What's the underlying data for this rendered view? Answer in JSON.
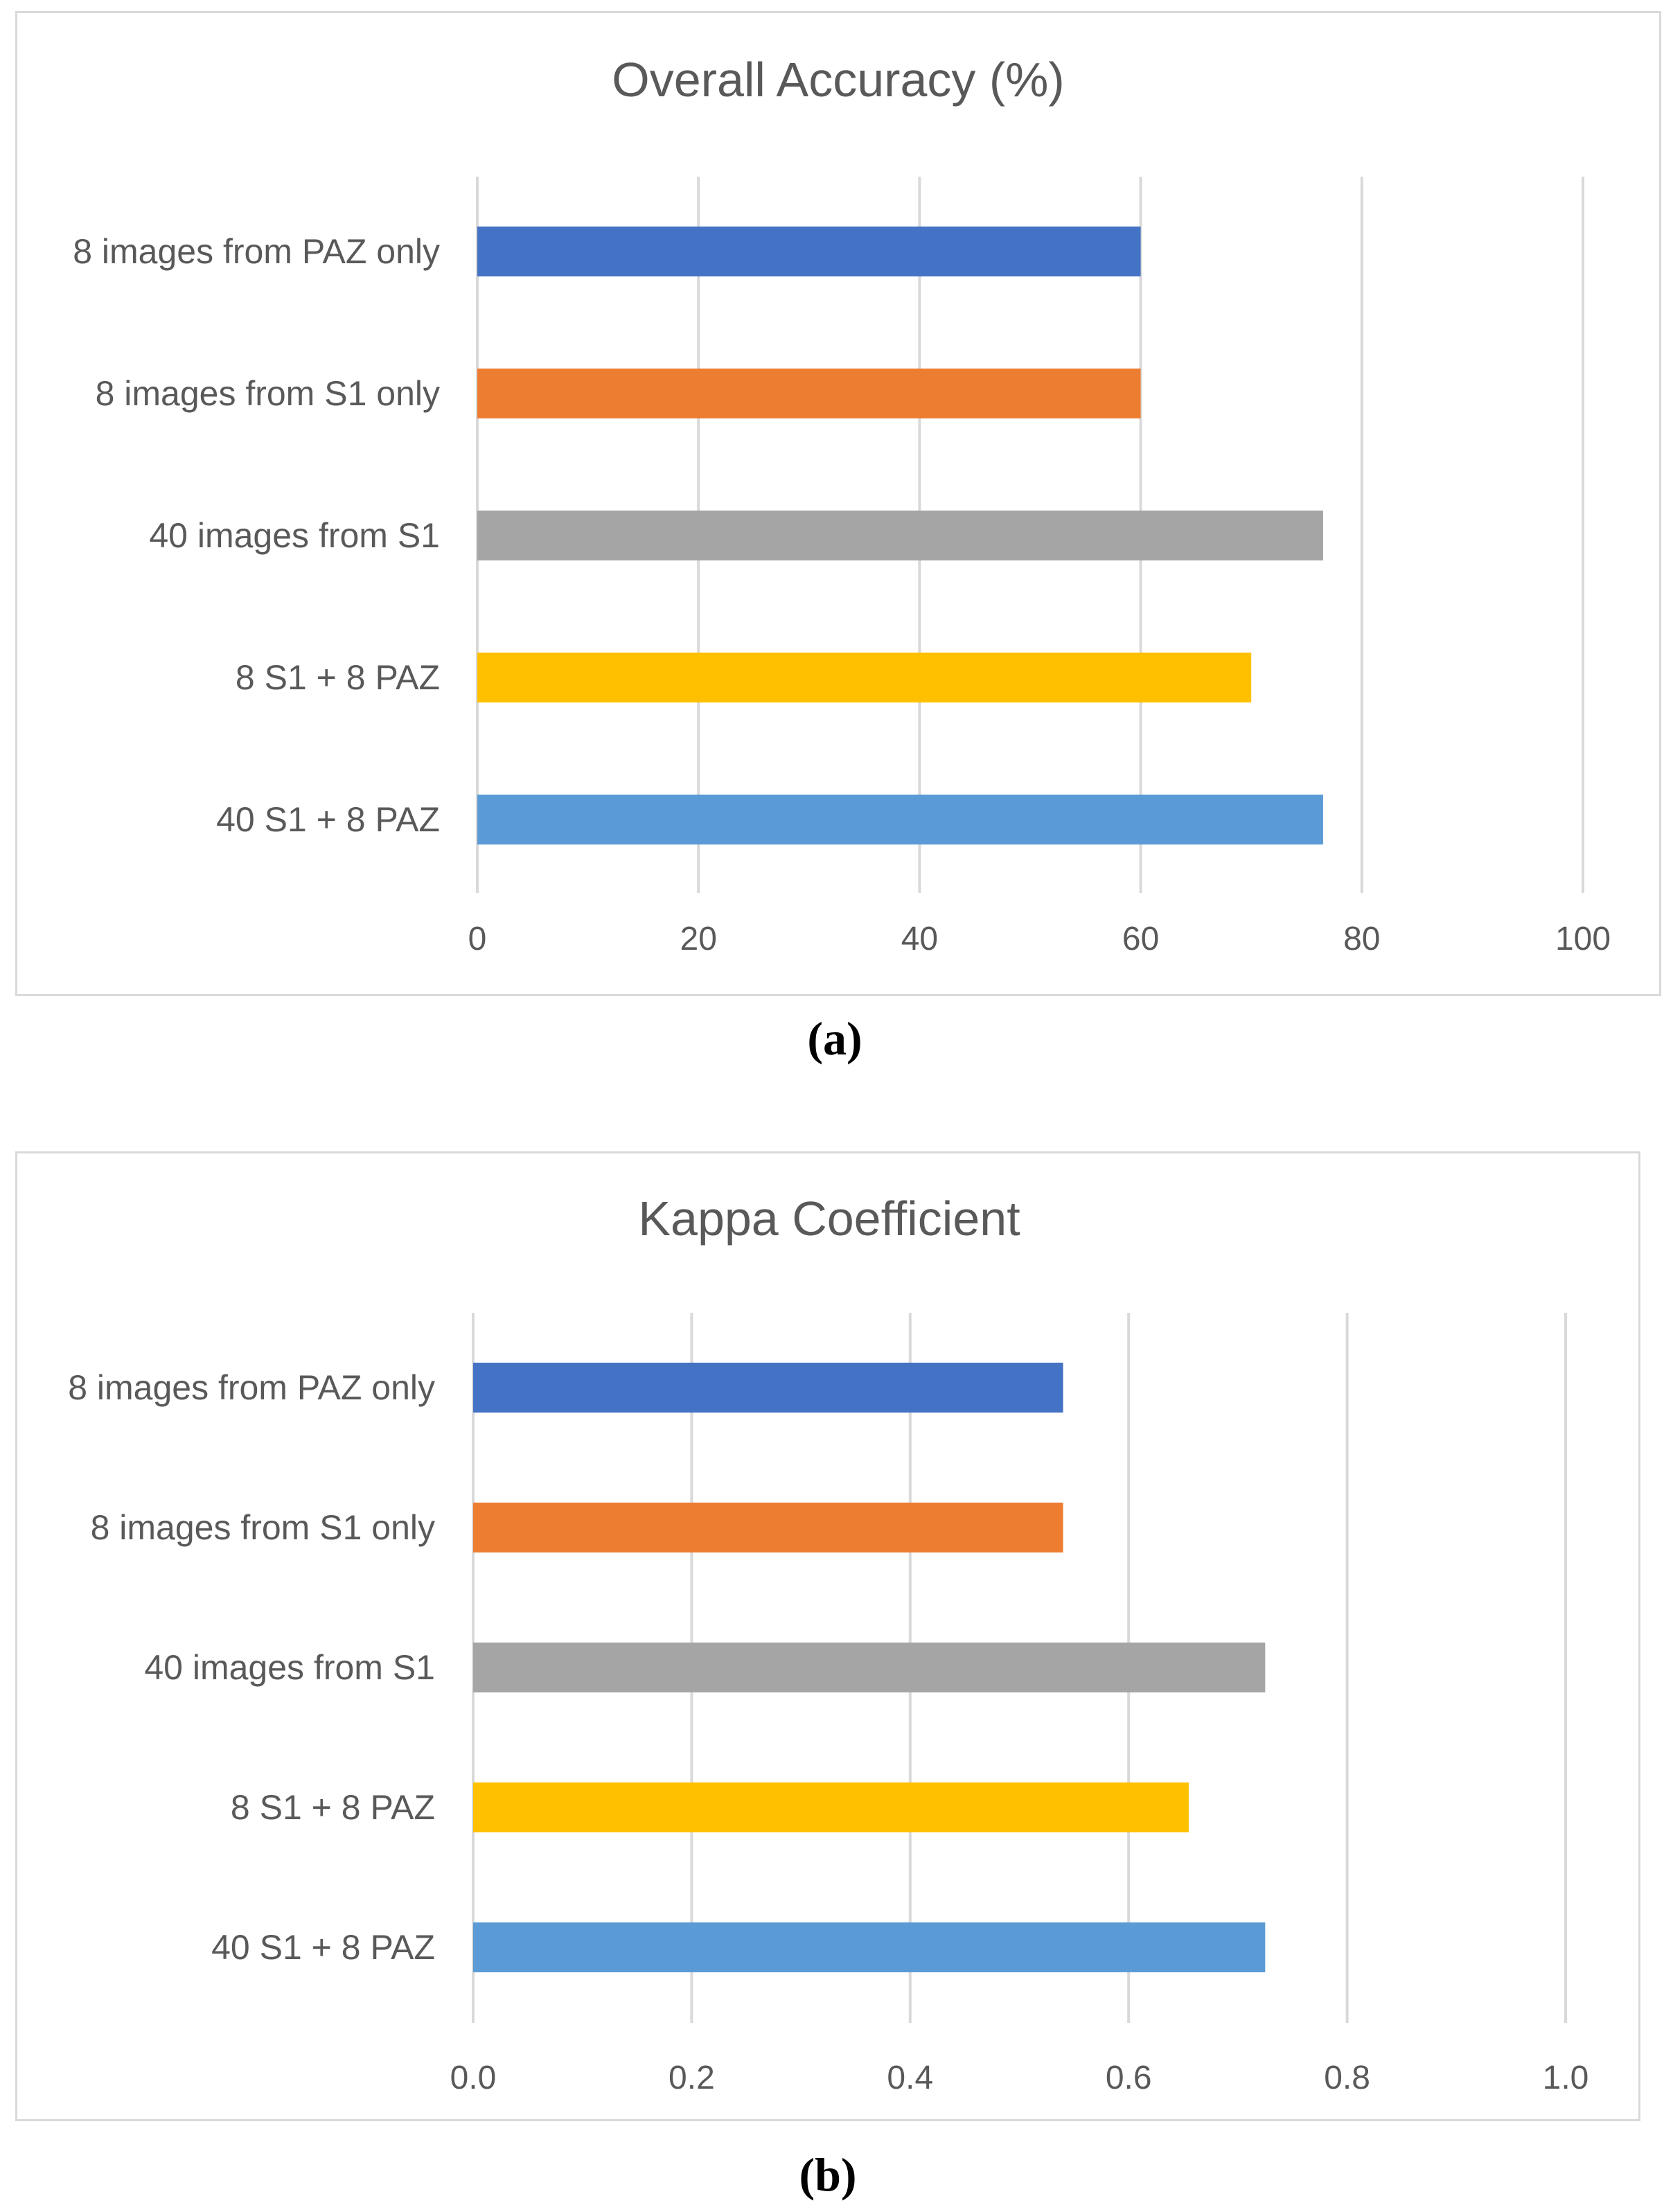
{
  "chart_data": [
    {
      "type": "bar",
      "orientation": "horizontal",
      "title": "Overall Accuracy (%)",
      "categories": [
        "8 images from PAZ only",
        "8 images from S1 only",
        "40 images from S1",
        "8 S1 + 8 PAZ",
        "40 S1 + 8 PAZ"
      ],
      "values": [
        60,
        60,
        76.5,
        70,
        76.5
      ],
      "colors": [
        "#4472C4",
        "#ED7D31",
        "#A5A5A5",
        "#FFC000",
        "#5B9BD5"
      ],
      "xlim": [
        0,
        100
      ],
      "ticks": [
        "0",
        "20",
        "40",
        "60",
        "80",
        "100"
      ],
      "grid": true,
      "legend": "none",
      "caption": "(a)"
    },
    {
      "type": "bar",
      "orientation": "horizontal",
      "title": "Kappa Coefficient",
      "categories": [
        "8 images from PAZ only",
        "8 images from S1 only",
        "40 images from S1",
        "8 S1 + 8 PAZ",
        "40 S1 + 8 PAZ"
      ],
      "values": [
        0.54,
        0.54,
        0.725,
        0.655,
        0.725
      ],
      "colors": [
        "#4472C4",
        "#ED7D31",
        "#A5A5A5",
        "#FFC000",
        "#5B9BD5"
      ],
      "xlim": [
        0,
        1
      ],
      "ticks": [
        "0.0",
        "0.2",
        "0.4",
        "0.6",
        "0.8",
        "1.0"
      ],
      "grid": true,
      "legend": "none",
      "caption": "(b)"
    }
  ]
}
